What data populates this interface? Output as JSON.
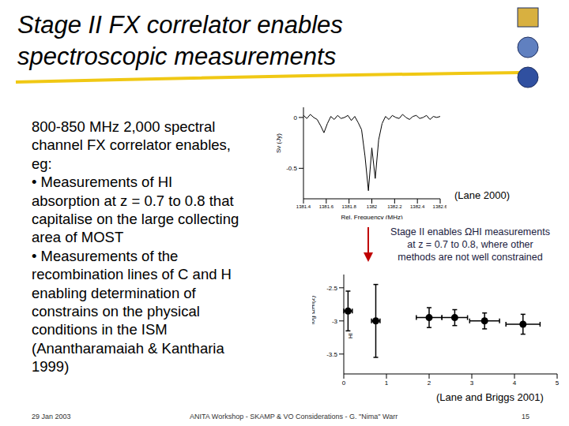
{
  "slide": {
    "title_lines": [
      "Stage II FX correlator enables",
      "spectroscopic measurements"
    ],
    "body_lines": [
      "800-850 MHz 2,000 spectral",
      "channel FX correlator enables,",
      "eg:",
      "• Measurements of HI",
      "absorption at z = 0.7 to 0.8 that",
      "capitalise on the large collecting",
      "area of MOST",
      "• Measurements of the",
      "recombination lines of C and H",
      "enabling determination of",
      "constrains on the physical",
      "conditions in the ISM",
      "(Anantharamaiah & Kantharia",
      "1999)"
    ],
    "note_lines": [
      "Stage II enables ΩHI measurements",
      "at z = 0.7 to 0.8, where other",
      "methods are not well constrained"
    ],
    "footer": {
      "date": "29 Jan 2003",
      "center": "ANITA Workshop - SKAMP & VO Considerations - G. \"Nima\" Warr",
      "page": "15"
    }
  },
  "chart_data": [
    {
      "type": "line",
      "caption": "(Lane 2000)",
      "x_label": "Rel. Frequency (MHz)",
      "y_label": "Sν (Jy)",
      "x": [
        1381.4,
        1381.43,
        1381.46,
        1381.49,
        1381.52,
        1381.55,
        1381.58,
        1381.61,
        1381.64,
        1381.67,
        1381.7,
        1381.73,
        1381.76,
        1381.79,
        1381.82,
        1381.85,
        1381.88,
        1381.91,
        1381.94,
        1381.97,
        1382.0,
        1382.03,
        1382.06,
        1382.09,
        1382.12,
        1382.15,
        1382.18,
        1382.21,
        1382.24,
        1382.27,
        1382.3,
        1382.33,
        1382.36,
        1382.39,
        1382.42,
        1382.45,
        1382.48,
        1382.51,
        1382.54,
        1382.57,
        1382.6
      ],
      "values": [
        0.02,
        -0.01,
        0.03,
        0.0,
        -0.02,
        -0.08,
        -0.15,
        -0.06,
        0.01,
        -0.02,
        0.02,
        -0.01,
        0.0,
        0.02,
        -0.03,
        0.01,
        -0.05,
        -0.12,
        -0.38,
        -0.72,
        -0.3,
        -0.6,
        -0.22,
        -0.06,
        0.01,
        -0.02,
        0.02,
        0.0,
        -0.01,
        0.03,
        0.0,
        -0.02,
        0.01,
        0.02,
        -0.01,
        0.0,
        0.02,
        -0.02,
        0.01,
        0.0,
        0.01
      ],
      "xlim": [
        1381.4,
        1382.6
      ],
      "xticks": [
        1381.4,
        1381.6,
        1381.8,
        1382,
        1382.2,
        1382.4,
        1382.6
      ],
      "ylim": [
        -0.8,
        0.1
      ],
      "yticks": [
        -0.5,
        0
      ],
      "color": "#000000"
    },
    {
      "type": "scatter",
      "caption": "(Lane and Briggs 2001)",
      "y_label": "log ΩHI(z)",
      "annotation": "HI",
      "x": [
        0.1,
        0.75,
        2.0,
        2.6,
        3.3,
        4.2
      ],
      "values": [
        -2.85,
        -3.0,
        -2.95,
        -2.95,
        -3.0,
        -3.05
      ],
      "x_err": [
        0.1,
        0.1,
        0.3,
        0.3,
        0.35,
        0.4
      ],
      "y_err": [
        0.3,
        0.55,
        0.15,
        0.12,
        0.12,
        0.15
      ],
      "xlim": [
        0,
        5
      ],
      "xticks": [
        0,
        1,
        2,
        3,
        4,
        5
      ],
      "ylim": [
        -3.8,
        -2.3
      ],
      "yticks": [
        -3.5,
        -3,
        -2.5
      ],
      "color": "#000000",
      "marker": "circle"
    }
  ]
}
